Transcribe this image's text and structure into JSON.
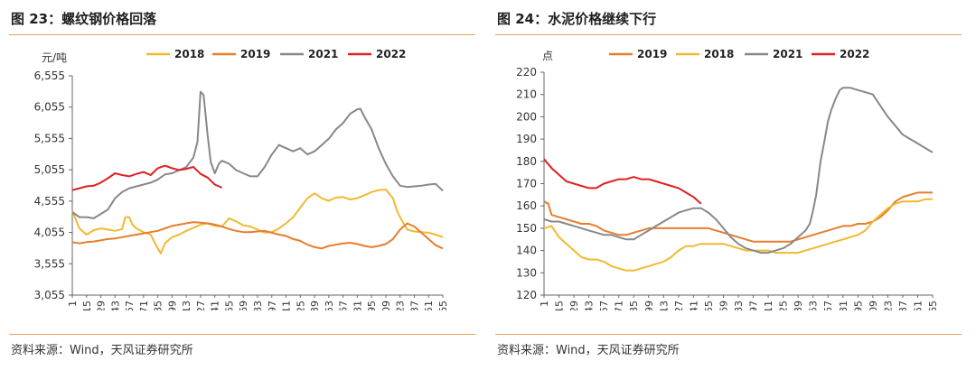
{
  "chart_data": [
    {
      "type": "line",
      "title": "图 23：螺纹钢价格回落",
      "source": "资料来源：Wind，天风证券研究所",
      "ylabel": "元/吨",
      "xlabel": "",
      "ylim": [
        3055,
        6555
      ],
      "yticks": [
        "3,055",
        "3,555",
        "4,055",
        "4,555",
        "5,055",
        "5,555",
        "6,055",
        "6,555"
      ],
      "ytick_values": [
        3055,
        3555,
        4055,
        4555,
        5055,
        5555,
        6055,
        6555
      ],
      "xlim": [
        1,
        365
      ],
      "xticks": [
        "1",
        "15",
        "29",
        "43",
        "57",
        "71",
        "85",
        "99",
        "113",
        "127",
        "141",
        "155",
        "169",
        "183",
        "197",
        "211",
        "225",
        "239",
        "253",
        "267",
        "281",
        "295",
        "309",
        "323",
        "337",
        "351",
        "365"
      ],
      "xtick_values": [
        1,
        15,
        29,
        43,
        57,
        71,
        85,
        99,
        113,
        127,
        141,
        155,
        169,
        183,
        197,
        211,
        225,
        239,
        253,
        267,
        281,
        295,
        309,
        323,
        337,
        351,
        365
      ],
      "grid": false,
      "legend_position": "top",
      "series": [
        {
          "name": "2018",
          "color": "#f2b930",
          "x": [
            1,
            8,
            15,
            22,
            29,
            36,
            43,
            50,
            53,
            57,
            60,
            64,
            71,
            78,
            85,
            88,
            92,
            99,
            106,
            113,
            120,
            127,
            134,
            141,
            148,
            155,
            162,
            169,
            176,
            183,
            190,
            197,
            204,
            211,
            218,
            225,
            232,
            239,
            246,
            253,
            260,
            267,
            274,
            281,
            288,
            295,
            302,
            309,
            316,
            320,
            323,
            330,
            337,
            344,
            351,
            358,
            365
          ],
          "y": [
            4400,
            4120,
            4020,
            4090,
            4120,
            4100,
            4080,
            4110,
            4300,
            4300,
            4180,
            4120,
            4060,
            4020,
            3800,
            3720,
            3880,
            3980,
            4020,
            4080,
            4130,
            4180,
            4200,
            4160,
            4150,
            4280,
            4230,
            4170,
            4150,
            4100,
            4050,
            4060,
            4120,
            4200,
            4300,
            4450,
            4600,
            4680,
            4600,
            4560,
            4610,
            4620,
            4580,
            4600,
            4650,
            4700,
            4730,
            4740,
            4600,
            4400,
            4300,
            4100,
            4070,
            4060,
            4050,
            4020,
            3980
          ]
        },
        {
          "name": "2019",
          "color": "#e87d2c",
          "x": [
            1,
            8,
            15,
            22,
            29,
            36,
            43,
            50,
            57,
            64,
            71,
            78,
            85,
            92,
            99,
            106,
            113,
            120,
            127,
            134,
            141,
            148,
            155,
            162,
            169,
            176,
            183,
            190,
            197,
            204,
            211,
            218,
            225,
            232,
            239,
            246,
            253,
            260,
            267,
            274,
            281,
            288,
            295,
            302,
            309,
            316,
            323,
            330,
            337,
            344,
            351,
            358,
            365
          ],
          "y": [
            3900,
            3880,
            3900,
            3910,
            3930,
            3950,
            3960,
            3980,
            4000,
            4020,
            4040,
            4060,
            4080,
            4120,
            4160,
            4180,
            4200,
            4220,
            4210,
            4200,
            4180,
            4150,
            4110,
            4080,
            4060,
            4060,
            4070,
            4080,
            4050,
            4020,
            4000,
            3950,
            3920,
            3860,
            3820,
            3800,
            3840,
            3860,
            3880,
            3890,
            3870,
            3840,
            3820,
            3840,
            3870,
            3950,
            4100,
            4200,
            4150,
            4050,
            3950,
            3850,
            3800
          ]
        },
        {
          "name": "2021",
          "color": "#888888",
          "x": [
            1,
            8,
            15,
            22,
            29,
            36,
            43,
            50,
            57,
            64,
            71,
            78,
            85,
            92,
            99,
            106,
            113,
            120,
            124,
            127,
            130,
            134,
            137,
            141,
            145,
            148,
            155,
            162,
            169,
            176,
            183,
            190,
            197,
            204,
            211,
            218,
            225,
            232,
            239,
            246,
            253,
            260,
            267,
            274,
            281,
            284,
            288,
            295,
            302,
            309,
            316,
            323,
            330,
            337,
            344,
            351,
            358,
            365
          ],
          "y": [
            4380,
            4300,
            4300,
            4280,
            4350,
            4420,
            4600,
            4700,
            4760,
            4790,
            4820,
            4850,
            4900,
            4980,
            5000,
            5050,
            5100,
            5250,
            5500,
            6300,
            6250,
            5600,
            5180,
            5000,
            5150,
            5200,
            5150,
            5050,
            5000,
            4950,
            4950,
            5100,
            5300,
            5450,
            5400,
            5350,
            5400,
            5300,
            5350,
            5450,
            5550,
            5700,
            5800,
            5950,
            6020,
            6030,
            5900,
            5700,
            5400,
            5150,
            4950,
            4800,
            4780,
            4790,
            4800,
            4820,
            4830,
            4720
          ]
        },
        {
          "name": "2022",
          "color": "#e02020",
          "x": [
            1,
            8,
            15,
            22,
            29,
            36,
            43,
            50,
            57,
            64,
            71,
            78,
            85,
            92,
            99,
            106,
            113,
            120,
            127,
            134,
            141,
            148
          ],
          "y": [
            4730,
            4760,
            4790,
            4800,
            4850,
            4920,
            5000,
            4970,
            4950,
            4990,
            5020,
            4970,
            5080,
            5120,
            5080,
            5050,
            5070,
            5100,
            4990,
            4930,
            4820,
            4770
          ]
        }
      ]
    },
    {
      "type": "line",
      "title": "图 24：水泥价格继续下行",
      "source": "资料来源：Wind，天风证券研究所",
      "ylabel": "点",
      "xlabel": "",
      "ylim": [
        120,
        220
      ],
      "yticks": [
        "120",
        "130",
        "140",
        "150",
        "160",
        "170",
        "180",
        "190",
        "200",
        "210",
        "220"
      ],
      "ytick_values": [
        120,
        130,
        140,
        150,
        160,
        170,
        180,
        190,
        200,
        210,
        220
      ],
      "xlim": [
        1,
        365
      ],
      "xticks": [
        "1",
        "15",
        "29",
        "43",
        "57",
        "71",
        "85",
        "99",
        "113",
        "127",
        "141",
        "155",
        "169",
        "183",
        "197",
        "211",
        "225",
        "239",
        "253",
        "267",
        "281",
        "295",
        "309",
        "323",
        "337",
        "351",
        "365"
      ],
      "xtick_values": [
        1,
        15,
        29,
        43,
        57,
        71,
        85,
        99,
        113,
        127,
        141,
        155,
        169,
        183,
        197,
        211,
        225,
        239,
        253,
        267,
        281,
        295,
        309,
        323,
        337,
        351,
        365
      ],
      "grid": false,
      "legend_position": "top",
      "series": [
        {
          "name": "2019",
          "color": "#e87d2c",
          "x": [
            1,
            5,
            8,
            15,
            22,
            29,
            36,
            43,
            50,
            57,
            64,
            71,
            78,
            85,
            92,
            99,
            106,
            113,
            120,
            127,
            134,
            141,
            148,
            155,
            162,
            169,
            176,
            183,
            190,
            197,
            204,
            211,
            218,
            225,
            232,
            239,
            246,
            253,
            260,
            267,
            274,
            281,
            288,
            295,
            302,
            309,
            316,
            323,
            330,
            337,
            344,
            351,
            358,
            365
          ],
          "y": [
            162,
            161,
            156,
            155,
            154,
            153,
            152,
            152,
            151,
            149,
            148,
            147,
            147,
            148,
            149,
            150,
            150,
            150,
            150,
            150,
            150,
            150,
            150,
            150,
            149,
            148,
            147,
            146,
            145,
            144,
            144,
            144,
            144,
            144,
            144,
            145,
            146,
            147,
            148,
            149,
            150,
            151,
            151,
            152,
            152,
            153,
            155,
            158,
            162,
            164,
            165,
            166,
            166,
            166
          ]
        },
        {
          "name": "2018",
          "color": "#f2b930",
          "x": [
            1,
            8,
            15,
            22,
            29,
            36,
            43,
            50,
            57,
            64,
            71,
            78,
            85,
            92,
            99,
            106,
            113,
            120,
            127,
            134,
            141,
            148,
            155,
            162,
            169,
            176,
            183,
            190,
            197,
            204,
            211,
            218,
            225,
            232,
            239,
            246,
            253,
            260,
            267,
            274,
            281,
            288,
            295,
            302,
            309,
            316,
            323,
            330,
            337,
            344,
            351,
            358,
            365
          ],
          "y": [
            150,
            151,
            146,
            143,
            140,
            137,
            136,
            136,
            135,
            133,
            132,
            131,
            131,
            132,
            133,
            134,
            135,
            137,
            140,
            142,
            142,
            143,
            143,
            143,
            143,
            142,
            141,
            140,
            140,
            140,
            140,
            139,
            139,
            139,
            139,
            140,
            141,
            142,
            143,
            144,
            145,
            146,
            147,
            149,
            153,
            156,
            159,
            161,
            162,
            162,
            162,
            163,
            163
          ]
        },
        {
          "name": "2021",
          "color": "#888888",
          "x": [
            1,
            8,
            15,
            22,
            29,
            36,
            43,
            50,
            57,
            64,
            71,
            78,
            85,
            92,
            99,
            106,
            113,
            120,
            127,
            134,
            141,
            148,
            155,
            162,
            169,
            176,
            183,
            190,
            197,
            204,
            211,
            218,
            225,
            232,
            239,
            246,
            250,
            253,
            256,
            260,
            264,
            267,
            270,
            274,
            278,
            281,
            288,
            295,
            302,
            309,
            316,
            323,
            330,
            337,
            344,
            351,
            358,
            365
          ],
          "y": [
            154,
            153,
            153,
            152,
            151,
            150,
            149,
            148,
            147,
            147,
            146,
            145,
            145,
            147,
            149,
            151,
            153,
            155,
            157,
            158,
            159,
            159,
            157,
            154,
            150,
            146,
            143,
            141,
            140,
            139,
            139,
            140,
            141,
            143,
            146,
            149,
            152,
            158,
            165,
            180,
            190,
            198,
            203,
            208,
            212,
            213,
            213,
            212,
            211,
            210,
            205,
            200,
            196,
            192,
            190,
            188,
            186,
            184
          ]
        },
        {
          "name": "2022",
          "color": "#e02020",
          "x": [
            1,
            8,
            15,
            22,
            29,
            36,
            43,
            50,
            57,
            64,
            71,
            78,
            85,
            92,
            99,
            106,
            113,
            120,
            127,
            134,
            141,
            148
          ],
          "y": [
            181,
            177,
            174,
            171,
            170,
            169,
            168,
            168,
            170,
            171,
            172,
            172,
            173,
            172,
            172,
            171,
            170,
            169,
            168,
            166,
            164,
            161
          ]
        }
      ]
    }
  ]
}
